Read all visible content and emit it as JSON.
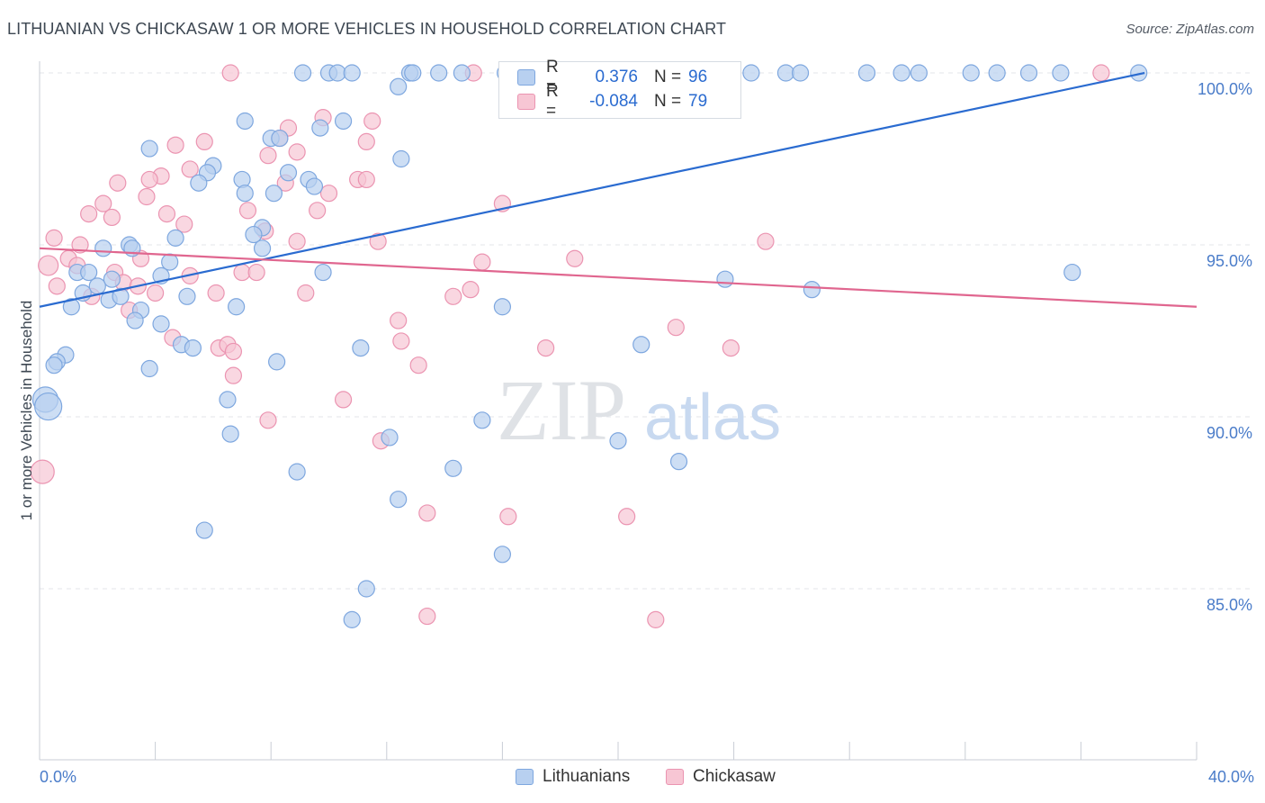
{
  "title": "LITHUANIAN VS CHICKASAW 1 OR MORE VEHICLES IN HOUSEHOLD CORRELATION CHART",
  "source": "Source: ZipAtlas.com",
  "watermark": {
    "zip": "ZIP",
    "atlas": "atlas"
  },
  "legend_stats": {
    "lithuanians": {
      "r_label": "R =",
      "r_value": "0.376",
      "n_label": "N =",
      "n_value": "96"
    },
    "chickasaw": {
      "r_label": "R =",
      "r_value": "-0.084",
      "n_label": "N =",
      "n_value": "79"
    }
  },
  "bottom_legend": {
    "lithuanians": "Lithuanians",
    "chickasaw": "Chickasaw"
  },
  "colors": {
    "lithuanians_fill": "#b8d0f0",
    "lithuanians_stroke": "#7ea7df",
    "lithuanians_line": "#2a6bd0",
    "chickasaw_fill": "#f7c6d4",
    "chickasaw_stroke": "#eb94b1",
    "chickasaw_line": "#e0668f",
    "axis_text": "#4a7cc9",
    "grid": "#e3e6ea"
  },
  "chart_data": {
    "type": "scatter",
    "title": "LITHUANIAN VS CHICKASAW 1 OR MORE VEHICLES IN HOUSEHOLD CORRELATION CHART",
    "xlabel": "",
    "ylabel": "1 or more Vehicles in Household",
    "xlim": [
      0,
      40
    ],
    "ylim": [
      80.0,
      100.5
    ],
    "x_tick_labels": [
      "0.0%",
      "40.0%"
    ],
    "y_ticks": [
      85,
      90,
      95,
      100
    ],
    "y_tick_labels": [
      "85.0%",
      "90.0%",
      "95.0%",
      "100.0%"
    ],
    "grid": true,
    "legend_placement": "top-center",
    "series": [
      {
        "name": "Lithuanians",
        "trend": {
          "x": [
            0.0,
            38.2
          ],
          "y": [
            93.2,
            100.0
          ]
        },
        "points": [
          [
            9.1,
            100
          ],
          [
            10.0,
            100
          ],
          [
            10.3,
            100
          ],
          [
            10.8,
            100
          ],
          [
            12.8,
            100
          ],
          [
            12.9,
            100
          ],
          [
            13.8,
            100
          ],
          [
            14.6,
            100
          ],
          [
            16.1,
            100
          ],
          [
            17.8,
            100
          ],
          [
            18.6,
            100
          ],
          [
            20.1,
            100
          ],
          [
            21.6,
            100
          ],
          [
            22.8,
            100
          ],
          [
            24.6,
            100
          ],
          [
            25.8,
            100
          ],
          [
            26.3,
            100
          ],
          [
            28.6,
            100
          ],
          [
            29.8,
            100
          ],
          [
            30.4,
            100
          ],
          [
            32.2,
            100
          ],
          [
            33.1,
            100
          ],
          [
            34.2,
            100
          ],
          [
            35.3,
            100
          ],
          [
            38.0,
            100
          ],
          [
            12.4,
            99.6
          ],
          [
            10.5,
            98.6
          ],
          [
            7.1,
            98.6
          ],
          [
            9.7,
            98.4
          ],
          [
            8.0,
            98.1
          ],
          [
            8.3,
            98.1
          ],
          [
            3.8,
            97.8
          ],
          [
            12.5,
            97.5
          ],
          [
            6.0,
            97.3
          ],
          [
            5.8,
            97.1
          ],
          [
            8.6,
            97.1
          ],
          [
            7.0,
            96.9
          ],
          [
            9.3,
            96.9
          ],
          [
            5.5,
            96.8
          ],
          [
            9.5,
            96.7
          ],
          [
            7.1,
            96.5
          ],
          [
            8.1,
            96.5
          ],
          [
            7.7,
            95.5
          ],
          [
            4.7,
            95.2
          ],
          [
            7.4,
            95.3
          ],
          [
            7.7,
            94.9
          ],
          [
            2.2,
            94.9
          ],
          [
            3.1,
            95.0
          ],
          [
            3.2,
            94.9
          ],
          [
            4.5,
            94.5
          ],
          [
            1.3,
            94.2
          ],
          [
            1.7,
            94.2
          ],
          [
            2.5,
            94.0
          ],
          [
            4.2,
            94.1
          ],
          [
            9.8,
            94.2
          ],
          [
            23.7,
            94.0
          ],
          [
            35.7,
            94.2
          ],
          [
            2.0,
            93.8
          ],
          [
            1.5,
            93.6
          ],
          [
            2.4,
            93.4
          ],
          [
            2.8,
            93.5
          ],
          [
            5.1,
            93.5
          ],
          [
            26.7,
            93.7
          ],
          [
            1.1,
            93.2
          ],
          [
            3.5,
            93.1
          ],
          [
            6.8,
            93.2
          ],
          [
            16.0,
            93.2
          ],
          [
            3.3,
            92.8
          ],
          [
            4.2,
            92.7
          ],
          [
            4.9,
            92.1
          ],
          [
            5.3,
            92.0
          ],
          [
            11.1,
            92.0
          ],
          [
            20.8,
            92.1
          ],
          [
            0.9,
            91.8
          ],
          [
            0.6,
            91.6
          ],
          [
            0.5,
            91.5
          ],
          [
            8.2,
            91.6
          ],
          [
            3.8,
            91.4
          ],
          [
            0.2,
            90.5
          ],
          [
            0.3,
            90.3
          ],
          [
            6.5,
            90.5
          ],
          [
            15.3,
            89.9
          ],
          [
            6.6,
            89.5
          ],
          [
            12.1,
            89.4
          ],
          [
            20.0,
            89.3
          ],
          [
            8.9,
            88.4
          ],
          [
            14.3,
            88.5
          ],
          [
            22.1,
            88.7
          ],
          [
            12.4,
            87.6
          ],
          [
            5.7,
            86.7
          ],
          [
            16.0,
            86.0
          ],
          [
            11.3,
            85.0
          ],
          [
            10.8,
            84.1
          ]
        ]
      },
      {
        "name": "Chickasaw",
        "trend": {
          "x": [
            0.0,
            40.0
          ],
          "y": [
            94.9,
            93.2
          ]
        },
        "points": [
          [
            6.6,
            100
          ],
          [
            15.0,
            100
          ],
          [
            16.4,
            100
          ],
          [
            21.4,
            100
          ],
          [
            36.7,
            100
          ],
          [
            9.8,
            98.7
          ],
          [
            11.5,
            98.6
          ],
          [
            8.6,
            98.4
          ],
          [
            8.3,
            98.1
          ],
          [
            5.7,
            98.0
          ],
          [
            11.3,
            98.0
          ],
          [
            4.7,
            97.9
          ],
          [
            8.9,
            97.7
          ],
          [
            7.9,
            97.6
          ],
          [
            5.2,
            97.2
          ],
          [
            4.2,
            97.0
          ],
          [
            3.8,
            96.9
          ],
          [
            11.0,
            96.9
          ],
          [
            11.3,
            96.9
          ],
          [
            2.7,
            96.8
          ],
          [
            8.5,
            96.8
          ],
          [
            3.7,
            96.4
          ],
          [
            10.0,
            96.5
          ],
          [
            2.2,
            96.2
          ],
          [
            7.2,
            96.0
          ],
          [
            9.6,
            96.0
          ],
          [
            16.0,
            96.2
          ],
          [
            4.4,
            95.9
          ],
          [
            1.7,
            95.9
          ],
          [
            2.5,
            95.8
          ],
          [
            5.0,
            95.6
          ],
          [
            7.8,
            95.4
          ],
          [
            0.5,
            95.2
          ],
          [
            1.4,
            95.0
          ],
          [
            8.9,
            95.1
          ],
          [
            11.7,
            95.1
          ],
          [
            25.1,
            95.1
          ],
          [
            1.0,
            94.6
          ],
          [
            1.3,
            94.4
          ],
          [
            0.3,
            94.4
          ],
          [
            3.5,
            94.6
          ],
          [
            15.3,
            94.5
          ],
          [
            18.5,
            94.6
          ],
          [
            2.6,
            94.2
          ],
          [
            5.2,
            94.1
          ],
          [
            7.0,
            94.2
          ],
          [
            7.5,
            94.2
          ],
          [
            2.9,
            93.9
          ],
          [
            3.4,
            93.8
          ],
          [
            0.6,
            93.8
          ],
          [
            4.0,
            93.6
          ],
          [
            6.1,
            93.6
          ],
          [
            9.2,
            93.6
          ],
          [
            14.9,
            93.7
          ],
          [
            14.3,
            93.5
          ],
          [
            1.8,
            93.5
          ],
          [
            3.1,
            93.1
          ],
          [
            12.4,
            92.8
          ],
          [
            22.0,
            92.6
          ],
          [
            4.6,
            92.3
          ],
          [
            12.5,
            92.2
          ],
          [
            6.2,
            92.0
          ],
          [
            6.5,
            92.1
          ],
          [
            17.5,
            92.0
          ],
          [
            23.9,
            92.0
          ],
          [
            6.7,
            91.9
          ],
          [
            13.1,
            91.5
          ],
          [
            6.7,
            91.2
          ],
          [
            10.5,
            90.5
          ],
          [
            7.9,
            89.9
          ],
          [
            11.8,
            89.3
          ],
          [
            13.4,
            87.2
          ],
          [
            16.2,
            87.1
          ],
          [
            20.3,
            87.1
          ],
          [
            0.1,
            88.4
          ],
          [
            13.4,
            84.2
          ],
          [
            21.3,
            84.1
          ]
        ]
      }
    ]
  }
}
